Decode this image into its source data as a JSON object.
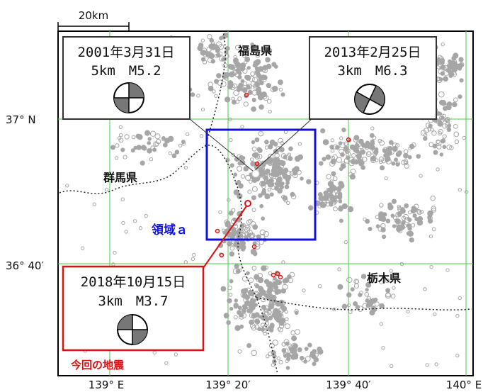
{
  "scale_bar": {
    "label": "20km"
  },
  "lat_labels": [
    "37° N",
    "36° 40′"
  ],
  "lon_labels": [
    "139° E",
    "139° 20′",
    "139° 40′",
    "140° E"
  ],
  "prefectures": {
    "fukushima": "福島県",
    "gunma": "群馬県",
    "tochigi": "栃木県"
  },
  "region": {
    "label": "領域ａ",
    "color": "#1010e0"
  },
  "events": [
    {
      "date": "2001年3月31日",
      "detail": "5km　M5.2"
    },
    {
      "date": "2013年2月25日",
      "detail": "3km　M6.3"
    },
    {
      "date": "2018年10月15日",
      "detail": "3km　M3.7",
      "caption": "今回の地震",
      "color": "#e01010"
    }
  ],
  "colors": {
    "grid": "#44cc44",
    "seismicity": "#a6a6a6",
    "epicenter": "#e01010"
  }
}
